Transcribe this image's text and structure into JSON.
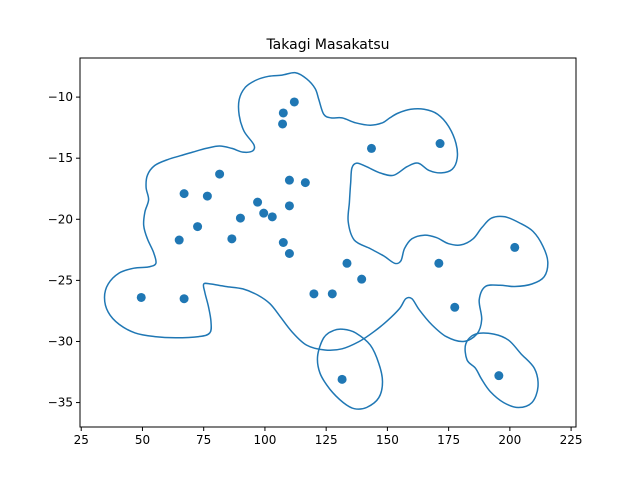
{
  "chart_data": {
    "type": "scatter",
    "title": "Takagi Masakatsu",
    "xlabel": "",
    "ylabel": "",
    "xlim": [
      24.5,
      227
    ],
    "ylim": [
      -37,
      -6.8
    ],
    "xticks": [
      25,
      50,
      75,
      100,
      125,
      150,
      175,
      200,
      225
    ],
    "xtick_labels": [
      "25",
      "50",
      "75",
      "100",
      "125",
      "150",
      "175",
      "200",
      "225"
    ],
    "yticks": [
      -10,
      -15,
      -20,
      -25,
      -30,
      -35
    ],
    "ytick_labels": [
      "−10",
      "−15",
      "−20",
      "−25",
      "−30",
      "−35"
    ],
    "grid": false,
    "color": "#1f77b4",
    "points": [
      {
        "x": 112,
        "y": -10.4
      },
      {
        "x": 107.5,
        "y": -11.3
      },
      {
        "x": 107.2,
        "y": -12.2
      },
      {
        "x": 143.5,
        "y": -14.2
      },
      {
        "x": 171.5,
        "y": -13.8
      },
      {
        "x": 81.5,
        "y": -16.3
      },
      {
        "x": 67,
        "y": -17.9
      },
      {
        "x": 76.5,
        "y": -18.1
      },
      {
        "x": 110,
        "y": -16.8
      },
      {
        "x": 116.5,
        "y": -17.0
      },
      {
        "x": 97,
        "y": -18.6
      },
      {
        "x": 110,
        "y": -18.9
      },
      {
        "x": 99.5,
        "y": -19.5
      },
      {
        "x": 90,
        "y": -19.9
      },
      {
        "x": 103,
        "y": -19.8
      },
      {
        "x": 72.5,
        "y": -20.6
      },
      {
        "x": 65,
        "y": -21.7
      },
      {
        "x": 86.5,
        "y": -21.6
      },
      {
        "x": 107.5,
        "y": -21.9
      },
      {
        "x": 110,
        "y": -22.8
      },
      {
        "x": 133.5,
        "y": -23.6
      },
      {
        "x": 171,
        "y": -23.6
      },
      {
        "x": 202,
        "y": -22.3
      },
      {
        "x": 139.5,
        "y": -24.9
      },
      {
        "x": 120,
        "y": -26.1
      },
      {
        "x": 127.5,
        "y": -26.1
      },
      {
        "x": 49.5,
        "y": -26.4
      },
      {
        "x": 67,
        "y": -26.5
      },
      {
        "x": 177.5,
        "y": -27.2
      },
      {
        "x": 131.5,
        "y": -33.1
      },
      {
        "x": 195.5,
        "y": -32.8
      }
    ],
    "contours": [
      [
        [
          107.0,
          -8.2
        ],
        [
          112.5,
          -8.0
        ],
        [
          117.0,
          -8.5
        ],
        [
          120.5,
          -9.3
        ],
        [
          122.0,
          -10.2
        ],
        [
          124.0,
          -11.4
        ],
        [
          127.0,
          -11.7
        ],
        [
          131.5,
          -11.7
        ],
        [
          137.0,
          -12.1
        ],
        [
          143.0,
          -12.3
        ],
        [
          148.0,
          -12.1
        ],
        [
          151.0,
          -11.7
        ],
        [
          154.5,
          -11.3
        ],
        [
          159.5,
          -11.0
        ],
        [
          165.0,
          -11.0
        ],
        [
          170.5,
          -11.4
        ],
        [
          175.0,
          -12.4
        ],
        [
          178.0,
          -13.8
        ],
        [
          178.5,
          -15.0
        ],
        [
          176.5,
          -15.9
        ],
        [
          172.0,
          -16.2
        ],
        [
          167.0,
          -16.0
        ],
        [
          162.5,
          -15.4
        ],
        [
          158.0,
          -15.7
        ],
        [
          152.5,
          -16.4
        ],
        [
          147.0,
          -16.2
        ],
        [
          141.5,
          -15.7
        ],
        [
          137.5,
          -15.4
        ],
        [
          135.5,
          -15.8
        ],
        [
          135.0,
          -17.0
        ],
        [
          134.5,
          -18.6
        ],
        [
          134.0,
          -20.2
        ],
        [
          136.5,
          -21.7
        ],
        [
          143.0,
          -22.4
        ],
        [
          148.5,
          -23.0
        ],
        [
          153.0,
          -23.6
        ],
        [
          155.5,
          -23.4
        ],
        [
          157.0,
          -22.4
        ],
        [
          160.0,
          -21.6
        ],
        [
          165.0,
          -21.3
        ],
        [
          170.0,
          -21.5
        ],
        [
          175.0,
          -22.0
        ],
        [
          180.0,
          -22.1
        ],
        [
          185.0,
          -21.6
        ],
        [
          188.5,
          -20.7
        ],
        [
          192.5,
          -19.9
        ],
        [
          198.0,
          -19.8
        ],
        [
          204.0,
          -20.3
        ],
        [
          209.5,
          -21.0
        ],
        [
          213.5,
          -22.2
        ],
        [
          215.5,
          -23.5
        ],
        [
          214.0,
          -24.7
        ],
        [
          209.0,
          -25.3
        ],
        [
          202.0,
          -25.5
        ],
        [
          196.0,
          -25.4
        ],
        [
          190.0,
          -25.5
        ],
        [
          187.5,
          -26.6
        ],
        [
          188.5,
          -28.2
        ],
        [
          186.5,
          -29.4
        ],
        [
          181.0,
          -30.0
        ],
        [
          174.0,
          -29.6
        ],
        [
          168.0,
          -28.6
        ],
        [
          163.0,
          -27.4
        ],
        [
          160.0,
          -26.5
        ],
        [
          157.5,
          -26.5
        ],
        [
          155.0,
          -27.3
        ],
        [
          150.0,
          -28.3
        ],
        [
          144.5,
          -29.2
        ],
        [
          138.5,
          -30.0
        ],
        [
          131.5,
          -30.6
        ],
        [
          124.5,
          -30.7
        ],
        [
          117.0,
          -30.3
        ],
        [
          111.0,
          -29.2
        ],
        [
          106.0,
          -27.9
        ],
        [
          102.0,
          -26.9
        ],
        [
          97.0,
          -26.2
        ],
        [
          91.0,
          -25.7
        ],
        [
          84.0,
          -25.5
        ],
        [
          78.0,
          -25.3
        ],
        [
          75.0,
          -25.3
        ],
        [
          75.5,
          -26.0
        ],
        [
          77.0,
          -27.2
        ],
        [
          78.0,
          -28.4
        ],
        [
          77.5,
          -29.3
        ],
        [
          73.0,
          -29.6
        ],
        [
          63.5,
          -29.7
        ],
        [
          55.0,
          -29.6
        ],
        [
          47.0,
          -29.3
        ],
        [
          40.5,
          -28.6
        ],
        [
          36.0,
          -27.6
        ],
        [
          34.5,
          -26.4
        ],
        [
          36.0,
          -25.3
        ],
        [
          40.5,
          -24.4
        ],
        [
          46.5,
          -24.0
        ],
        [
          52.5,
          -23.9
        ],
        [
          55.5,
          -23.6
        ],
        [
          54.5,
          -22.7
        ],
        [
          52.0,
          -21.6
        ],
        [
          50.5,
          -20.5
        ],
        [
          51.0,
          -19.4
        ],
        [
          52.5,
          -18.4
        ],
        [
          51.5,
          -17.4
        ],
        [
          52.0,
          -16.4
        ],
        [
          55.0,
          -15.6
        ],
        [
          60.5,
          -15.1
        ],
        [
          65.5,
          -14.8
        ],
        [
          70.5,
          -14.5
        ],
        [
          76.0,
          -14.2
        ],
        [
          81.5,
          -14.0
        ],
        [
          86.5,
          -14.2
        ],
        [
          91.0,
          -14.5
        ],
        [
          95.0,
          -14.4
        ],
        [
          95.5,
          -13.9
        ],
        [
          91.5,
          -12.8
        ],
        [
          89.5,
          -11.5
        ],
        [
          89.5,
          -10.2
        ],
        [
          92.0,
          -9.2
        ],
        [
          96.5,
          -8.6
        ],
        [
          101.5,
          -8.3
        ]
      ],
      [
        [
          132.0,
          -29.0
        ],
        [
          137.0,
          -29.3
        ],
        [
          143.0,
          -30.3
        ],
        [
          146.5,
          -31.8
        ],
        [
          148.0,
          -33.3
        ],
        [
          146.5,
          -34.6
        ],
        [
          141.5,
          -35.4
        ],
        [
          136.5,
          -35.5
        ],
        [
          132.0,
          -35.0
        ],
        [
          126.5,
          -33.9
        ],
        [
          122.5,
          -32.6
        ],
        [
          121.5,
          -31.2
        ],
        [
          124.0,
          -29.7
        ],
        [
          128.0,
          -29.1
        ]
      ],
      [
        [
          193.5,
          -29.4
        ],
        [
          199.5,
          -29.9
        ],
        [
          204.5,
          -31.0
        ],
        [
          210.0,
          -32.2
        ],
        [
          211.5,
          -33.7
        ],
        [
          209.0,
          -35.0
        ],
        [
          203.5,
          -35.4
        ],
        [
          197.5,
          -35.0
        ],
        [
          192.0,
          -34.1
        ],
        [
          188.5,
          -33.1
        ],
        [
          186.0,
          -32.2
        ],
        [
          182.5,
          -31.5
        ],
        [
          182.0,
          -30.2
        ],
        [
          186.0,
          -29.4
        ]
      ]
    ]
  }
}
